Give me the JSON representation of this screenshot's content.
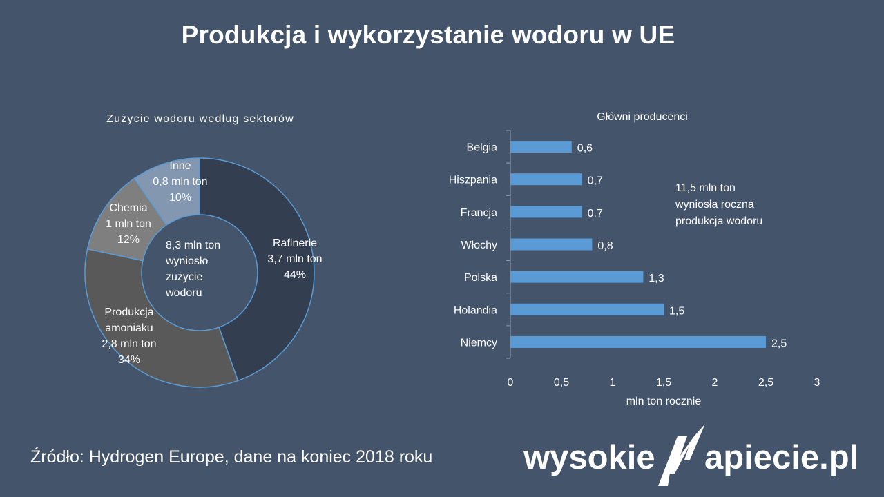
{
  "title": "Produkcja i wykorzystanie wodoru w UE",
  "chart_data": [
    {
      "type": "pie",
      "variant": "donut",
      "title": "Zużycie wodoru według sektorów",
      "center_label": [
        "8,3 mln ton",
        "wyniosło",
        "zużycie",
        "wodoru"
      ],
      "slices": [
        {
          "name": "Rafinerie",
          "value": 3.7,
          "unit": "mln ton",
          "percent": "44%",
          "label": [
            "Rafinerie",
            "3,7 mln ton",
            "44%"
          ],
          "color": "#333f50"
        },
        {
          "name": "Produkcja amoniaku",
          "value": 2.8,
          "unit": "mln ton",
          "percent": "34%",
          "label": [
            "Produkcja",
            "amoniaku",
            "2,8 mln ton",
            "34%"
          ],
          "color": "#595959"
        },
        {
          "name": "Chemia",
          "value": 1.0,
          "unit": "mln ton",
          "percent": "12%",
          "label": [
            "Chemia",
            "1 mln ton",
            "12%"
          ],
          "color": "#7f7f7f"
        },
        {
          "name": "Inne",
          "value": 0.8,
          "unit": "mln ton",
          "percent": "10%",
          "label": [
            "Inne",
            "0,8 mln ton",
            "10%"
          ],
          "color": "#8497b0"
        }
      ]
    },
    {
      "type": "bar",
      "orientation": "horizontal",
      "title": "Główni producenci",
      "categories": [
        "Belgia",
        "Hiszpania",
        "Francja",
        "Włochy",
        "Polska",
        "Holandia",
        "Niemcy"
      ],
      "values": [
        0.6,
        0.7,
        0.7,
        0.8,
        1.3,
        1.5,
        2.5
      ],
      "value_labels": [
        "0,6",
        "0,7",
        "0,7",
        "0,8",
        "1,3",
        "1,5",
        "2,5"
      ],
      "xlabel": "mln ton rocznie",
      "xlim": [
        0,
        3
      ],
      "xticks": [
        "0",
        "0,5",
        "1",
        "1,5",
        "2",
        "2,5",
        "3"
      ],
      "bar_color": "#5b9bd5",
      "annotation": [
        "11,5 mln ton",
        "wyniosła roczna",
        "produkcja wodoru"
      ]
    }
  ],
  "source": "Źródło: Hydrogen Europe, dane na koniec 2018 roku",
  "logo": {
    "left": "wysokie",
    "right": "apiecie.pl"
  }
}
